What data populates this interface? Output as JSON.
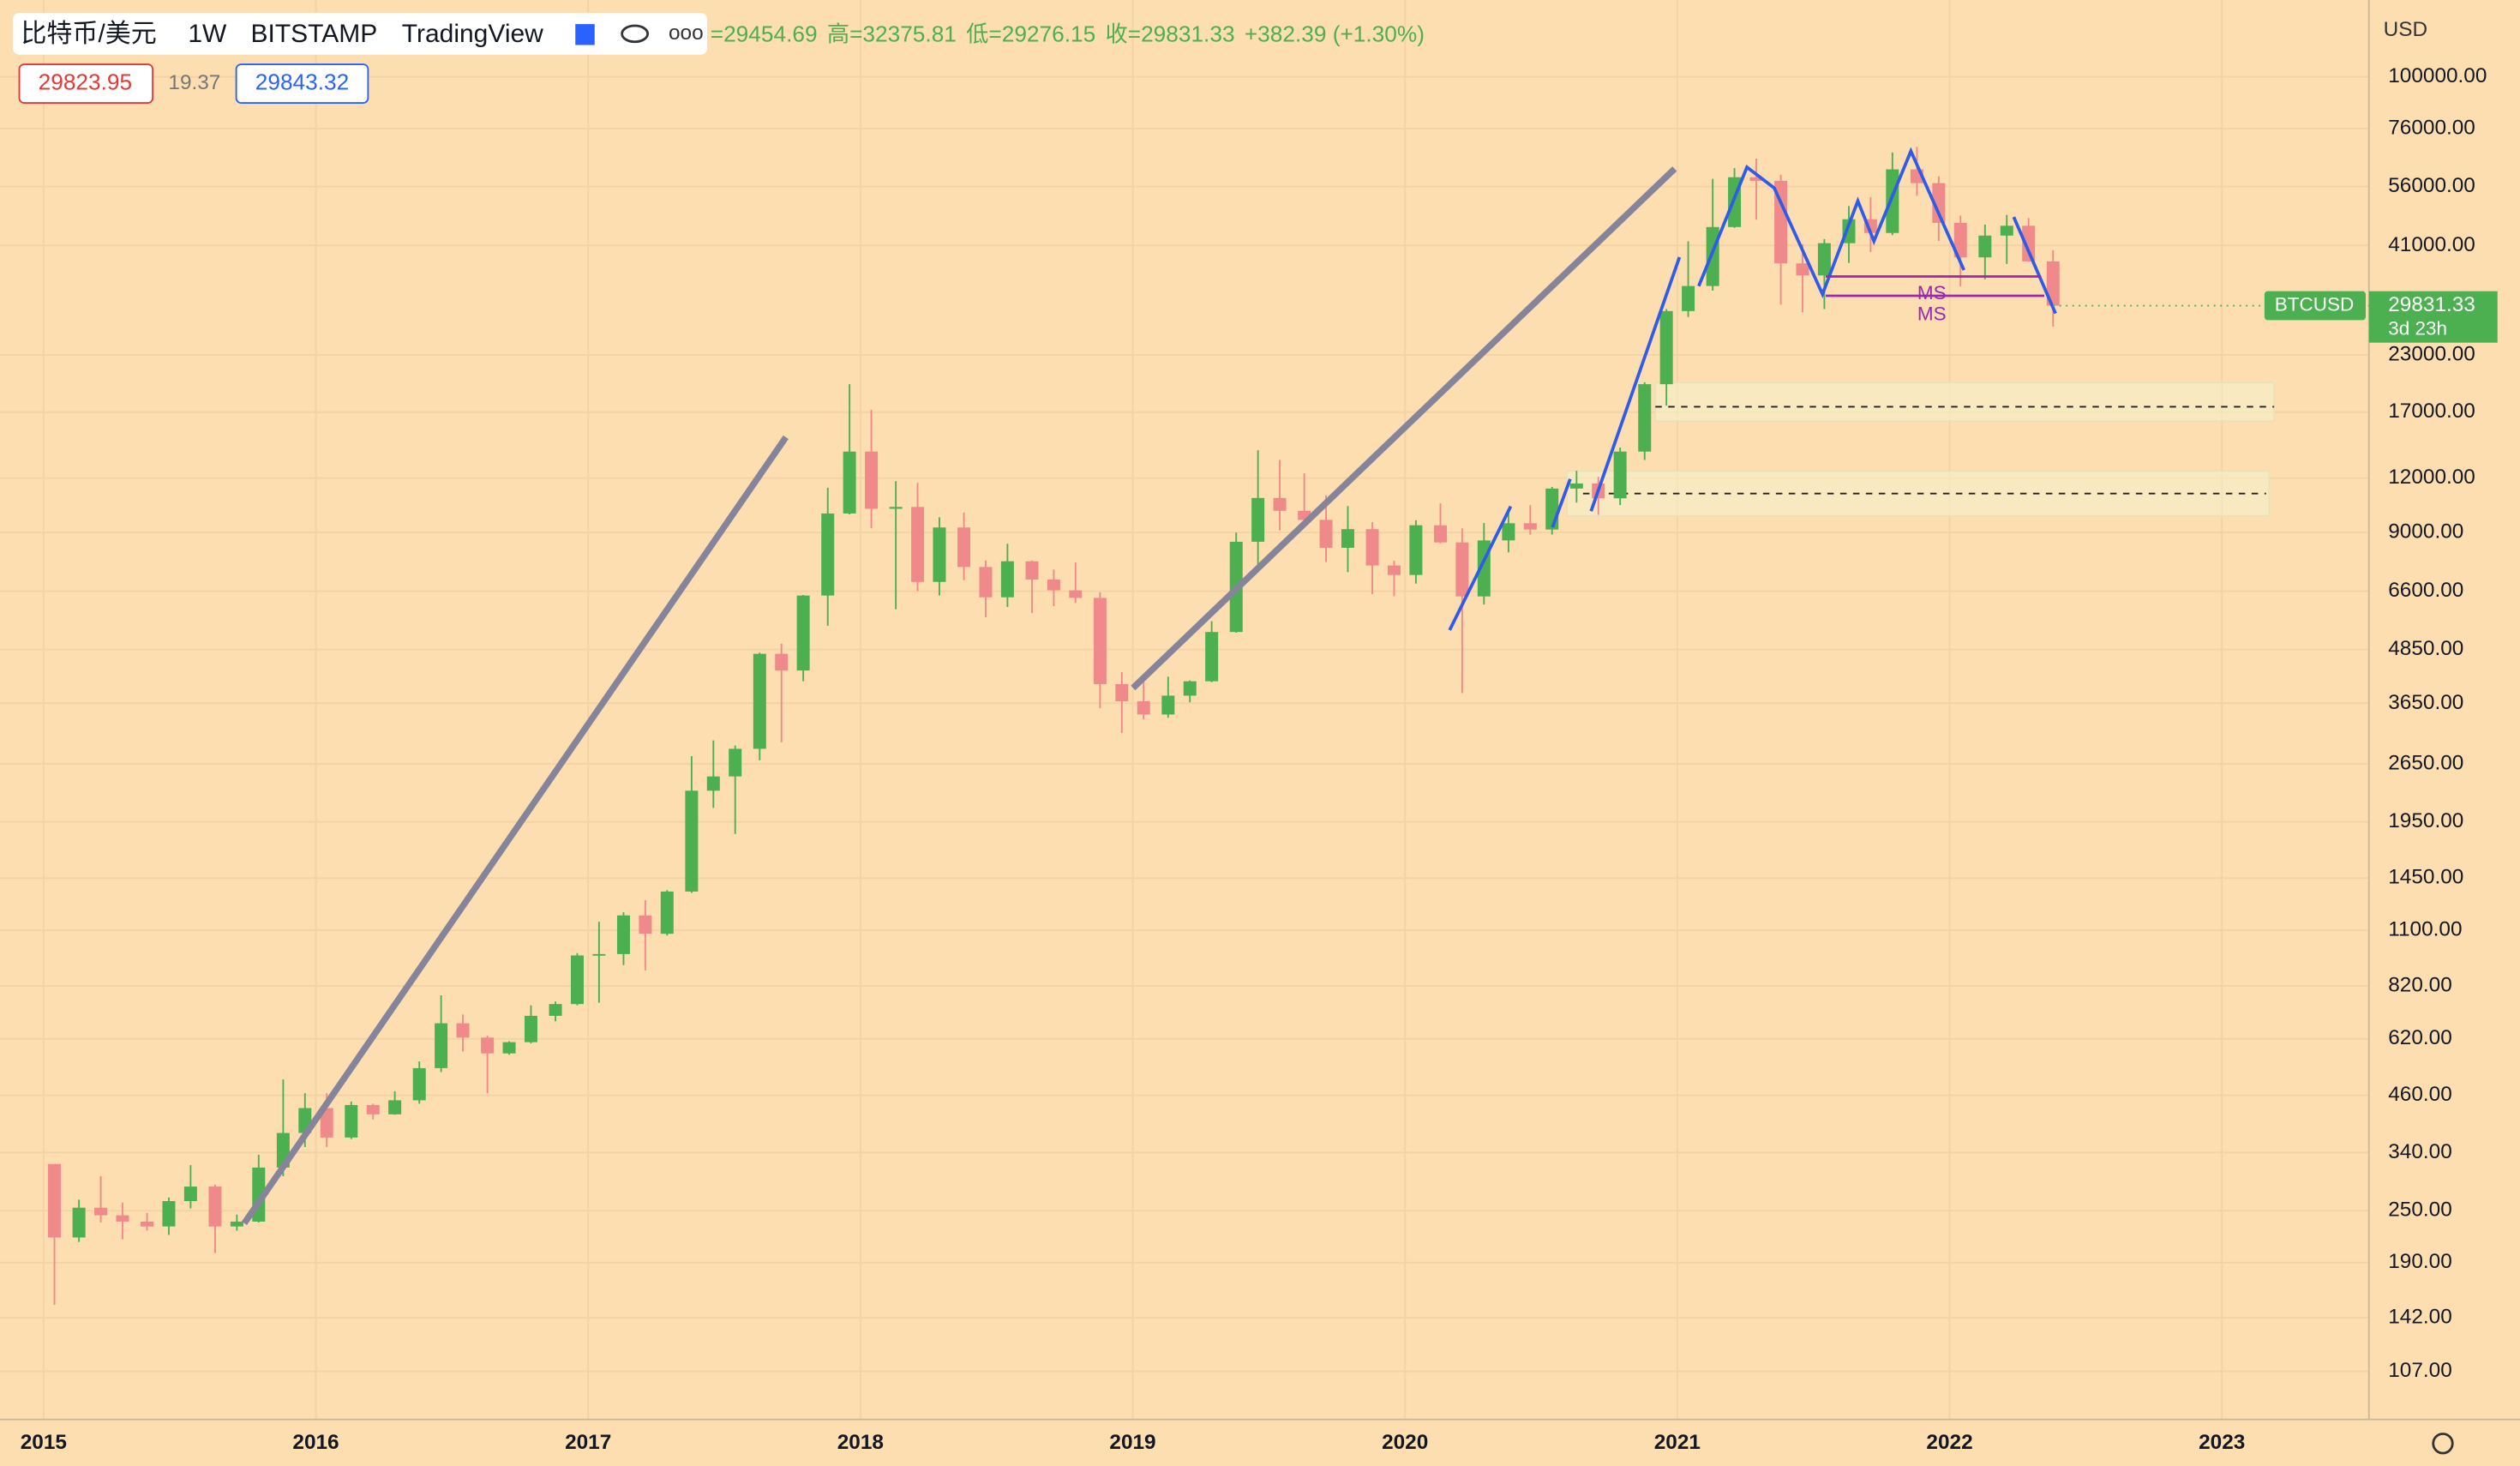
{
  "chart_data": {
    "type": "candlestick",
    "header": {
      "symbol": "比特币/美元",
      "interval": "1W",
      "exchange": "BITSTAMP",
      "source": "TradingView",
      "ohlc": [
        "=29454.69",
        "高=32375.81",
        "低=29276.15",
        "收=29831.33",
        "+382.39 (+1.30%)"
      ],
      "bid": "29823.95",
      "spread": "19.37",
      "ask": "29843.32"
    },
    "currency": "USD",
    "price_label": {
      "symbol": "BTCUSD",
      "price": "29831.33",
      "countdown": "3d 23h"
    },
    "annotations": [
      "MS",
      "MS"
    ],
    "up_color": "#4caf50",
    "down_color": "#f08a8a",
    "grid": true,
    "log_scale": true,
    "xlim": [
      2014.84,
      2023.54
    ],
    "xticks": [
      2015,
      2016,
      2017,
      2018,
      2019,
      2020,
      2021,
      2022,
      2023
    ],
    "ylim": [
      83,
      150000
    ],
    "yticks": [
      {
        "value": 100000,
        "label": "100000.00"
      },
      {
        "value": 76000,
        "label": "76000.00"
      },
      {
        "value": 56000,
        "label": "56000.00"
      },
      {
        "value": 41000,
        "label": "41000.00"
      },
      {
        "value": 23000,
        "label": "23000.00"
      },
      {
        "value": 17000,
        "label": "17000.00"
      },
      {
        "value": 12000,
        "label": "12000.00"
      },
      {
        "value": 9000,
        "label": "9000.00"
      },
      {
        "value": 6600,
        "label": "6600.00"
      },
      {
        "value": 4850,
        "label": "4850.00"
      },
      {
        "value": 3650,
        "label": "3650.00"
      },
      {
        "value": 2650,
        "label": "2650.00"
      },
      {
        "value": 1950,
        "label": "1950.00"
      },
      {
        "value": 1450,
        "label": "1450.00"
      },
      {
        "value": 1100,
        "label": "1100.00"
      },
      {
        "value": 820,
        "label": "820.00"
      },
      {
        "value": 620,
        "label": "620.00"
      },
      {
        "value": 460,
        "label": "460.00"
      },
      {
        "value": 340,
        "label": "340.00"
      },
      {
        "value": 250,
        "label": "250.00"
      },
      {
        "value": 190,
        "label": "190.00"
      },
      {
        "value": 142,
        "label": "142.00"
      },
      {
        "value": 107,
        "label": "107.00"
      }
    ],
    "x": [
      2015.04,
      2015.13,
      2015.21,
      2015.29,
      2015.38,
      2015.46,
      2015.54,
      2015.63,
      2015.71,
      2015.79,
      2015.88,
      2015.96,
      2016.04,
      2016.13,
      2016.21,
      2016.29,
      2016.38,
      2016.46,
      2016.54,
      2016.63,
      2016.71,
      2016.79,
      2016.88,
      2016.96,
      2017.04,
      2017.13,
      2017.21,
      2017.29,
      2017.38,
      2017.46,
      2017.54,
      2017.63,
      2017.71,
      2017.79,
      2017.88,
      2017.96,
      2018.04,
      2018.13,
      2018.21,
      2018.29,
      2018.38,
      2018.46,
      2018.54,
      2018.63,
      2018.71,
      2018.79,
      2018.88,
      2018.96,
      2019.04,
      2019.13,
      2019.21,
      2019.29,
      2019.38,
      2019.46,
      2019.54,
      2019.63,
      2019.71,
      2019.79,
      2019.88,
      2019.96,
      2020.04,
      2020.13,
      2020.21,
      2020.29,
      2020.38,
      2020.46,
      2020.54,
      2020.63,
      2020.71,
      2020.79,
      2020.88,
      2020.96,
      2021.04,
      2021.13,
      2021.21,
      2021.29,
      2021.38,
      2021.46,
      2021.54,
      2021.63,
      2021.71,
      2021.79,
      2021.88,
      2021.96,
      2022.04,
      2022.13,
      2022.21,
      2022.29,
      2022.38
    ],
    "open": [
      320,
      217,
      254,
      244,
      236,
      230,
      263,
      284,
      230,
      236,
      314,
      377,
      430,
      368,
      437,
      416,
      448,
      531,
      673,
      624,
      574,
      609,
      700,
      745,
      963,
      970,
      1190,
      1080,
      1350,
      2300,
      2480,
      2870,
      4740,
      4340,
      6450,
      9950,
      13800,
      10200,
      10300,
      6930,
      9240,
      7500,
      6390,
      7730,
      7020,
      6630,
      6370,
      4040,
      3690,
      3440,
      3800,
      4100,
      5320,
      8570,
      10800,
      10090,
      9620,
      8300,
      9160,
      7560,
      7190,
      9350,
      8540,
      6420,
      8630,
      9450,
      9140,
      11350,
      11660,
      10780,
      13800,
      19700,
      28990,
      33100,
      45200,
      58800,
      57700,
      37300,
      35000,
      41500,
      47100,
      43800,
      61300,
      57000,
      46200,
      38500,
      43200,
      45500,
      37700
    ],
    "high": [
      320,
      265,
      300,
      261,
      247,
      268,
      318,
      287,
      245,
      336,
      500,
      465,
      465,
      445,
      440,
      470,
      550,
      780,
      705,
      630,
      612,
      740,
      755,
      975,
      1150,
      1210,
      1290,
      1360,
      2760,
      3000,
      2920,
      4770,
      5000,
      6470,
      11400,
      19700,
      17200,
      11800,
      11700,
      9750,
      10000,
      7760,
      8480,
      7760,
      7400,
      7680,
      6560,
      4300,
      4100,
      4200,
      4120,
      5630,
      9000,
      13900,
      13200,
      12300,
      10950,
      10350,
      9500,
      7750,
      9600,
      10500,
      9200,
      9460,
      10070,
      10400,
      11450,
      12470,
      12080,
      14100,
      19900,
      29300,
      41900,
      58300,
      61700,
      64900,
      59600,
      41300,
      42400,
      50500,
      52900,
      67000,
      69000,
      59100,
      48000,
      45800,
      48200,
      47400,
      40000
    ],
    "low": [
      152,
      212,
      235,
      215,
      225,
      220,
      253,
      200,
      225,
      235,
      300,
      350,
      350,
      365,
      405,
      415,
      440,
      520,
      580,
      465,
      570,
      605,
      680,
      740,
      750,
      915,
      890,
      1070,
      1340,
      2100,
      1830,
      2700,
      2970,
      4100,
      5500,
      9900,
      9200,
      6000,
      6600,
      6450,
      7000,
      5750,
      6070,
      5880,
      6100,
      6200,
      3560,
      3120,
      3350,
      3380,
      3670,
      4080,
      5300,
      7500,
      9100,
      9350,
      7700,
      7300,
      6500,
      6430,
      6870,
      8500,
      3850,
      6150,
      8100,
      8900,
      8900,
      10540,
      9880,
      10400,
      13200,
      17600,
      28100,
      32300,
      45000,
      47000,
      30000,
      28800,
      29300,
      37400,
      39600,
      43300,
      53300,
      42000,
      33000,
      34300,
      37200,
      37600,
      26700
    ],
    "close": [
      217,
      254,
      244,
      236,
      230,
      263,
      284,
      230,
      236,
      314,
      377,
      430,
      368,
      437,
      416,
      448,
      531,
      673,
      624,
      574,
      609,
      700,
      745,
      963,
      970,
      1190,
      1080,
      1350,
      2300,
      2480,
      2870,
      4740,
      4340,
      6450,
      9950,
      13800,
      10200,
      10300,
      6930,
      9240,
      7500,
      6390,
      7730,
      7020,
      6630,
      6370,
      4040,
      3690,
      3440,
      3800,
      4100,
      5320,
      8570,
      10800,
      10090,
      9620,
      8300,
      9160,
      7560,
      7190,
      9350,
      8540,
      6420,
      8630,
      9450,
      9140,
      11350,
      11660,
      10780,
      13800,
      19700,
      28990,
      33100,
      45200,
      58800,
      57700,
      37300,
      35000,
      41500,
      47100,
      43800,
      61300,
      57000,
      46200,
      38500,
      43200,
      45500,
      37700,
      29831.33
    ]
  }
}
